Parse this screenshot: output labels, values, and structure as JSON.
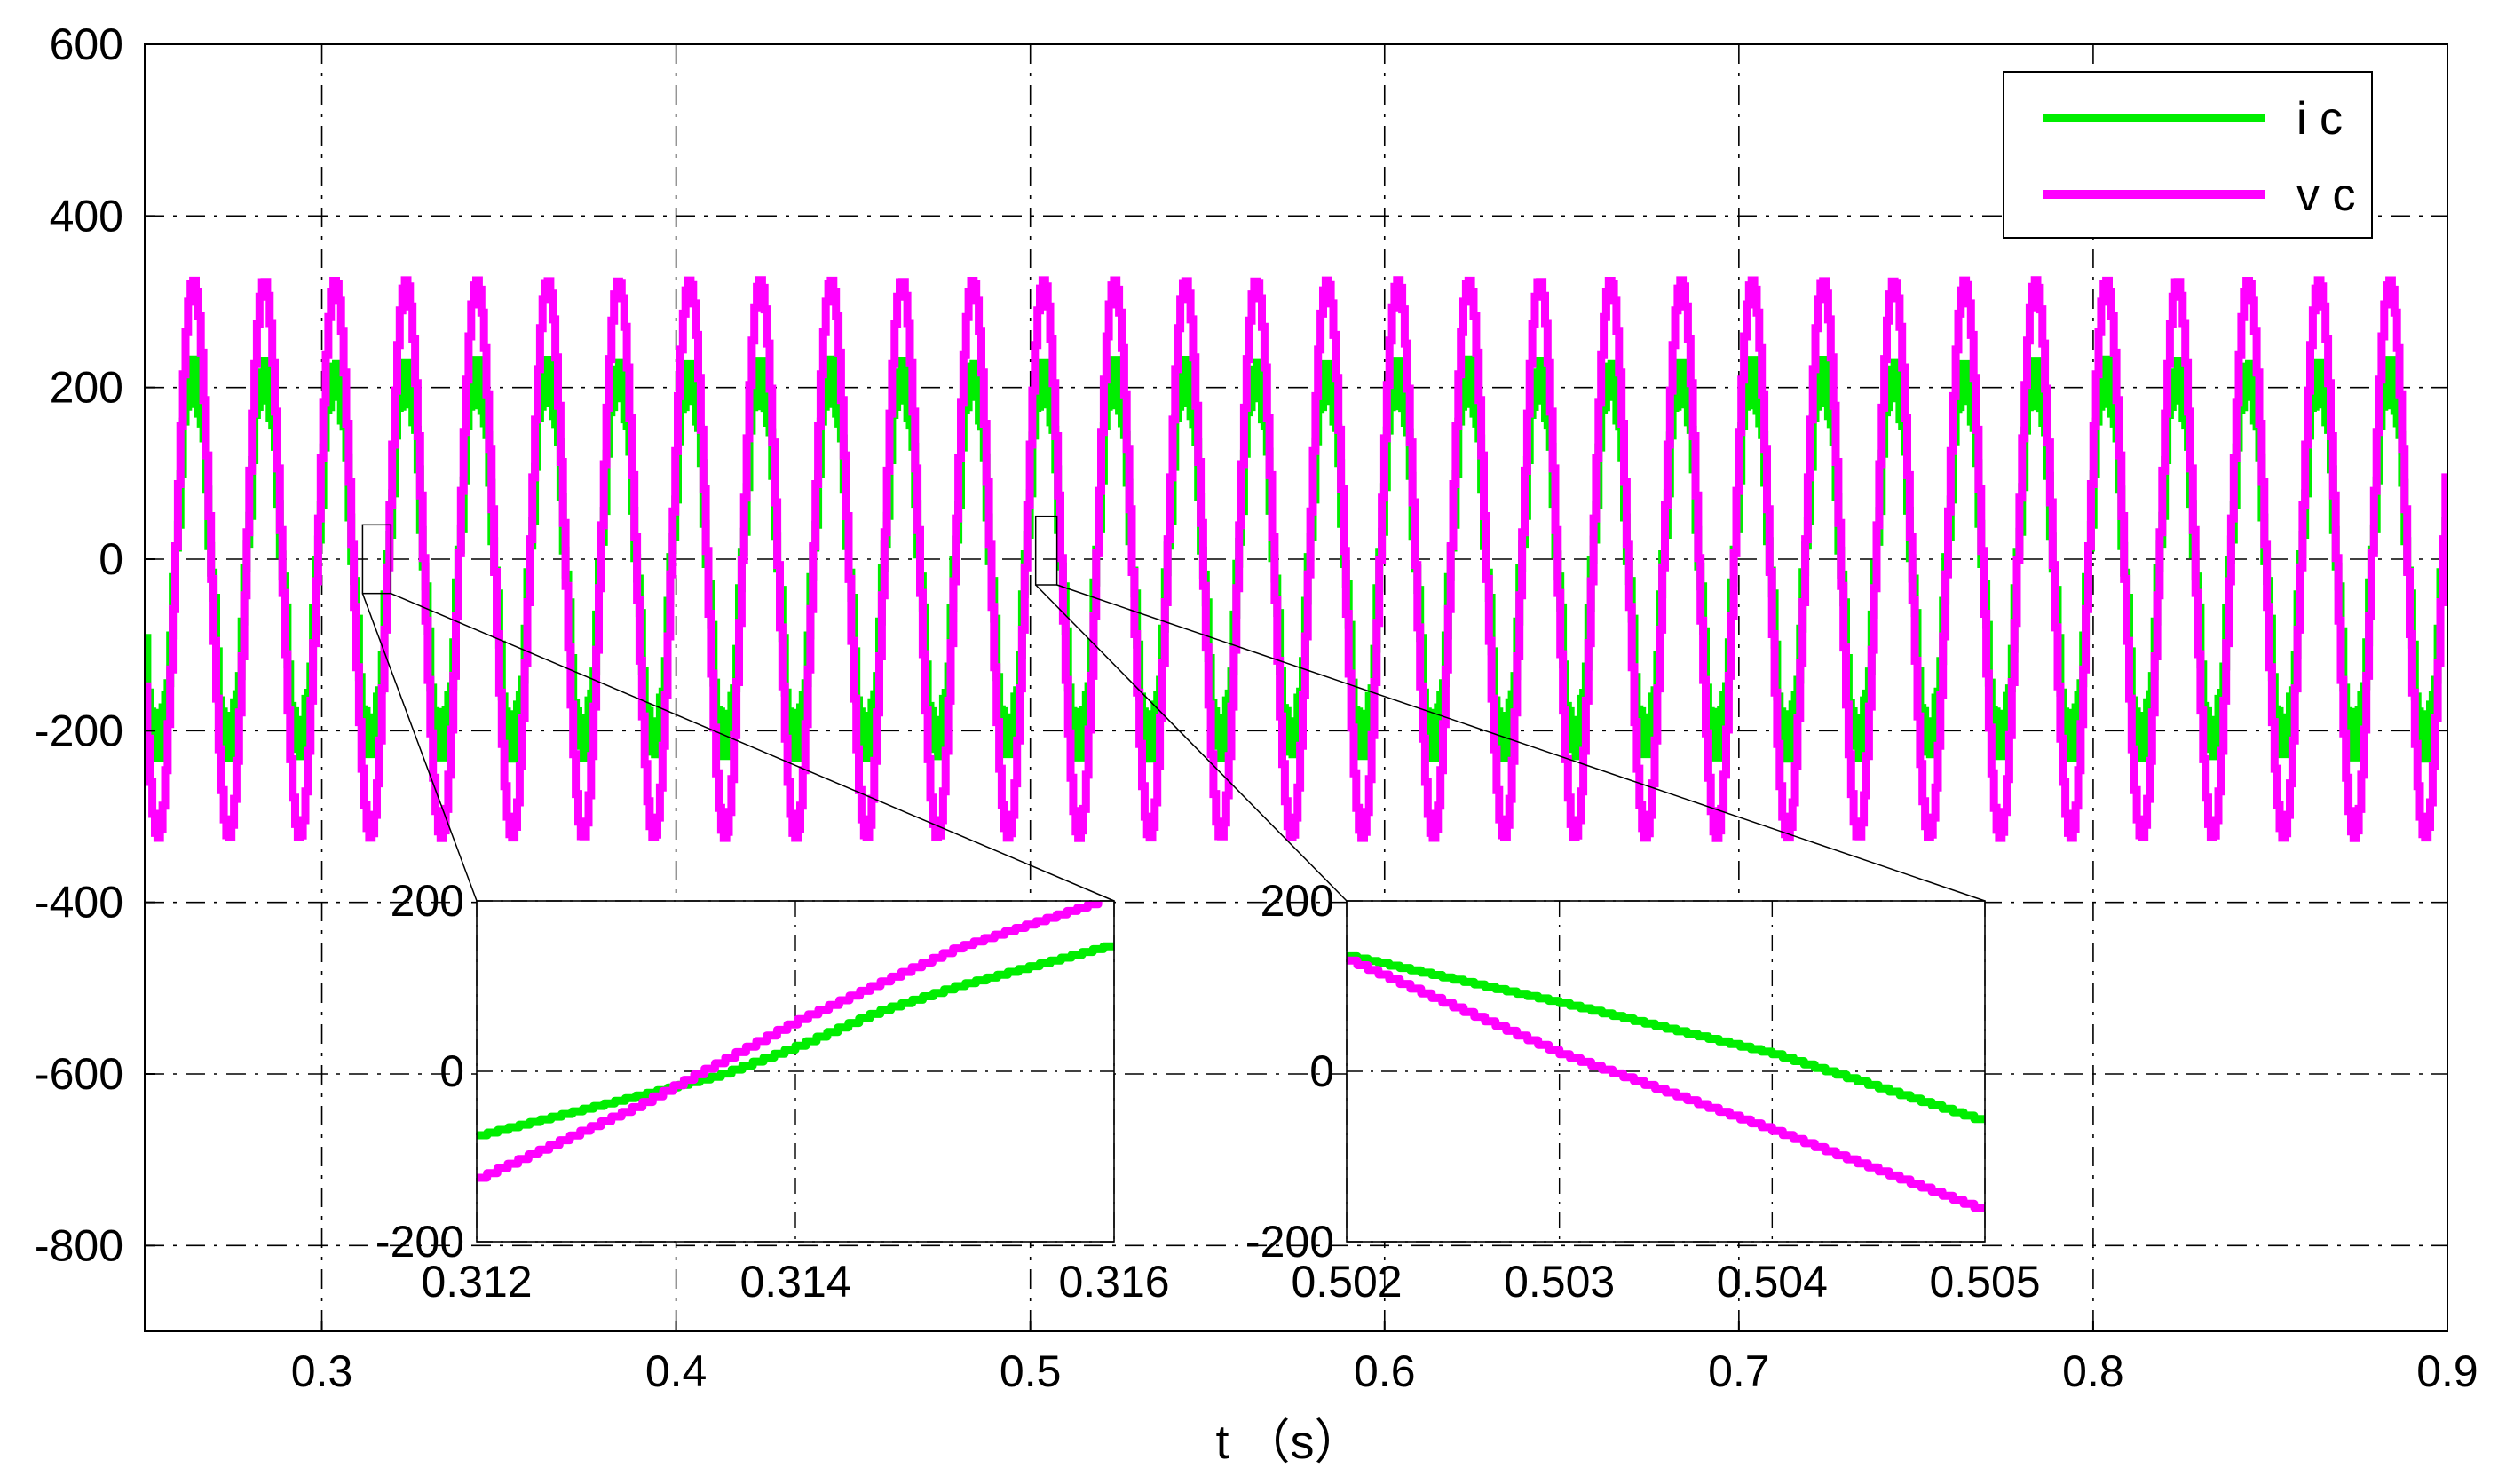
{
  "chart_data": [
    {
      "type": "line",
      "xlabel": "t （s）",
      "ylabel": "",
      "xlim": [
        0.25,
        0.9
      ],
      "ylim": [
        -900,
        600
      ],
      "x_ticks": [
        "0.3",
        "0.4",
        "0.5",
        "0.6",
        "0.7",
        "0.8",
        "0.9"
      ],
      "y_ticks": [
        "600",
        "400",
        "200",
        "0",
        "-200",
        "-400",
        "-600",
        "-800"
      ],
      "grid": true,
      "grid_style": "dash-dot",
      "legend_position": "top-right",
      "waveform": {
        "frequency_hz": 50,
        "phase_offset_deg": 30
      },
      "series": [
        {
          "name": "i c",
          "color": "#00ee00",
          "amplitude": 215,
          "style": "staircase sine"
        },
        {
          "name": "v c",
          "color": "#ff00ff",
          "amplitude": 325,
          "style": "staircase sine"
        }
      ],
      "zoom_boxes": [
        {
          "x_range": [
            0.3115,
            0.3195
          ],
          "y_range": [
            -40,
            40
          ]
        },
        {
          "x_range": [
            0.5015,
            0.5075
          ],
          "y_range": [
            -30,
            50
          ]
        }
      ]
    },
    {
      "type": "line",
      "role": "inset-left",
      "xlim": [
        0.312,
        0.316
      ],
      "ylim": [
        -200,
        200
      ],
      "x_ticks": [
        "0.312",
        "0.314",
        "0.316"
      ],
      "y_ticks": [
        "200",
        "0",
        "-200"
      ],
      "series": [
        {
          "name": "i c",
          "color": "#00ee00",
          "x": [
            0.312,
            0.3135,
            0.314,
            0.3145,
            0.315,
            0.316
          ],
          "y": [
            -75,
            -5,
            30,
            70,
            100,
            150
          ]
        },
        {
          "name": "v c",
          "color": "#ff00ff",
          "x": [
            0.312,
            0.313,
            0.314,
            0.315,
            0.3159
          ],
          "y": [
            -125,
            -40,
            60,
            145,
            200
          ]
        }
      ]
    },
    {
      "type": "line",
      "role": "inset-right",
      "xlim": [
        0.502,
        0.505
      ],
      "ylim": [
        -200,
        200
      ],
      "x_ticks": [
        "0.502",
        "0.503",
        "0.504",
        "0.505"
      ],
      "y_ticks": [
        "200",
        "0",
        "-200"
      ],
      "series": [
        {
          "name": "i c",
          "color": "#00ee00",
          "x": [
            0.502,
            0.503,
            0.504,
            0.505
          ],
          "y": [
            135,
            80,
            20,
            -60
          ]
        },
        {
          "name": "v c",
          "color": "#ff00ff",
          "x": [
            0.502,
            0.503,
            0.504,
            0.505
          ],
          "y": [
            130,
            20,
            -70,
            -165
          ]
        }
      ]
    }
  ]
}
